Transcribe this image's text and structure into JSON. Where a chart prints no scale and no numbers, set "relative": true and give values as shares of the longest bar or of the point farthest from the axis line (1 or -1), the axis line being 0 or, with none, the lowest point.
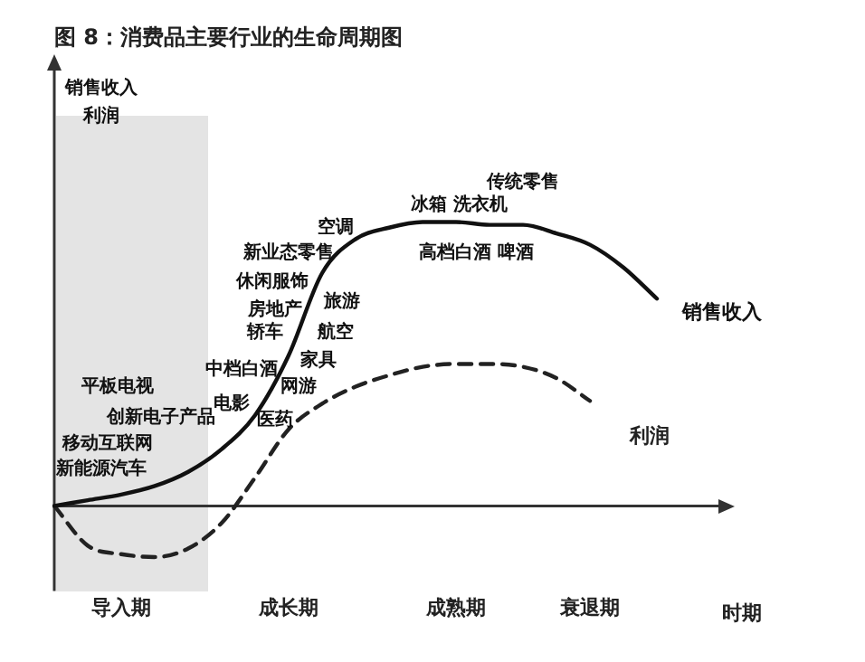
{
  "chart_data": {
    "type": "line",
    "title": "图 8：消费品主要行业的生命周期图",
    "xlabel": "时期",
    "relative": true,
    "legend": false,
    "grid": false,
    "marker": "none",
    "categories": [
      null,
      null,
      "导入期",
      null,
      null,
      null,
      null,
      "成长期",
      null,
      null,
      null,
      null,
      "成熟期",
      null,
      null,
      null,
      "衰退期",
      null,
      null,
      null,
      null
    ],
    "series": [
      {
        "name": "销售收入",
        "color": "#111111",
        "line_style": "solid",
        "values": [
          0,
          0.02,
          0.04,
          0.07,
          0.12,
          0.2,
          0.32,
          0.53,
          0.82,
          0.94,
          0.98,
          1,
          1,
          0.99,
          0.99,
          0.96,
          0.92,
          0.84,
          0.73,
          null,
          null
        ]
      },
      {
        "name": "利润",
        "color": "#222222",
        "line_style": "dashed",
        "values": [
          0,
          -0.14,
          -0.17,
          -0.18,
          -0.15,
          -0.06,
          0.1,
          0.27,
          0.36,
          0.42,
          0.46,
          0.49,
          0.5,
          0.5,
          0.49,
          0.45,
          0.37,
          null,
          null,
          null,
          null
        ]
      }
    ],
    "annotations": [
      "平板电视",
      "创新电子产品",
      "移动互联网",
      "新能源汽车",
      "电影",
      "中档白酒",
      "轿车",
      "房地产",
      "休闲服饰",
      "新业态零售",
      "空调",
      "旅游",
      "航空",
      "家具",
      "网游",
      "医药",
      "冰箱 洗衣机",
      "高档白酒 啤酒",
      "传统零售",
      "销售收入",
      "利润"
    ]
  }
}
